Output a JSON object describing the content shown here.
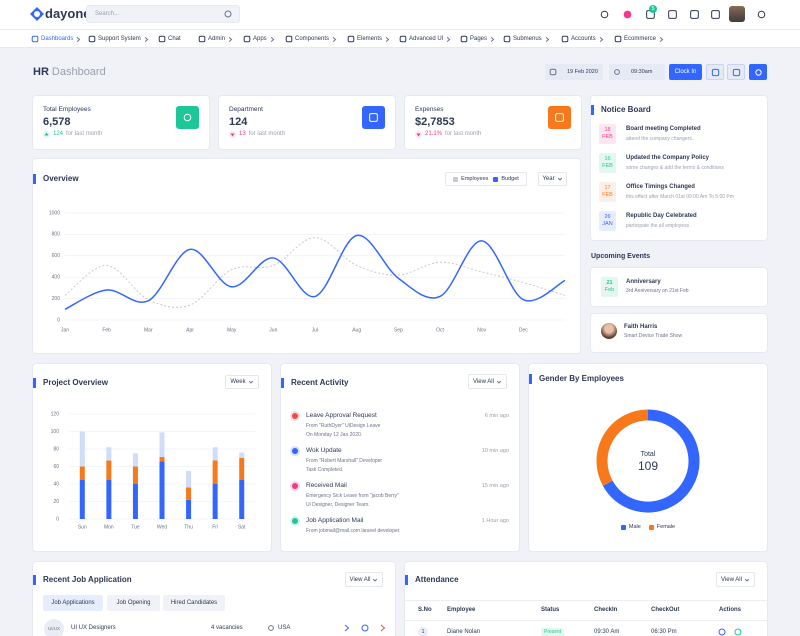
{
  "header": {
    "logo": "dayone",
    "search_placeholder": "Search...",
    "mail_badge": "5"
  },
  "nav": [
    "Dashboards",
    "Support System",
    "Chat",
    "Admin",
    "Apps",
    "Components",
    "Elements",
    "Advanced UI",
    "Pages",
    "Submenus",
    "Accounts",
    "Ecommerce"
  ],
  "page_title": {
    "prefix": "HR",
    "title": "Dashboard"
  },
  "toolbar": {
    "date": "19 Feb 2020",
    "time": "09:30am",
    "button": "Clock In"
  },
  "stats": [
    {
      "label": "Total Employees",
      "value": "6,578",
      "change": "124",
      "note": "for last month"
    },
    {
      "label": "Department",
      "value": "124",
      "change": "13",
      "note": "for last month"
    },
    {
      "label": "Expenses",
      "value": "$2,7853",
      "change": "21.1%",
      "note": "for last month"
    }
  ],
  "notice_board": {
    "title": "Notice Board",
    "items": [
      {
        "day": "18",
        "month": "FEB",
        "title": "Board meeting Completed",
        "text": "attend the company changers.."
      },
      {
        "day": "16",
        "month": "FEB",
        "title": "Updated the Company Policy",
        "text": "some changes & add the terms & conditions"
      },
      {
        "day": "17",
        "month": "FEB",
        "title": "Office Timings Changed",
        "text": "this effect after March 01st 09:00 Am To 5:00 Pm"
      },
      {
        "day": "26",
        "month": "JAN",
        "title": "Republic Day Celebrated",
        "text": "participate the all employess"
      }
    ]
  },
  "upcoming_events": {
    "title": "Upcoming Events",
    "event": {
      "day": "21",
      "month": "Feb",
      "title": "Anniversary",
      "text": "3rd Anniversary on 21st Feb"
    },
    "person": {
      "name": "Faith Harris",
      "text": "Smart Device Trade Show"
    }
  },
  "chart_data": [
    {
      "type": "line",
      "title": "Overview",
      "control": "Year",
      "categories": [
        "Jan",
        "Feb",
        "Mar",
        "Apr",
        "May",
        "Jun",
        "Jul",
        "Aug",
        "Sep",
        "Oct",
        "Nov",
        "Dec",
        null
      ],
      "series": [
        {
          "name": "Employees",
          "color": "#c5cad6",
          "dashed": true,
          "values": [
            230,
            510,
            190,
            140,
            470,
            510,
            770,
            510,
            420,
            540,
            450,
            350,
            230
          ]
        },
        {
          "name": "Budget",
          "color": "#3366ff",
          "values": [
            100,
            280,
            180,
            660,
            310,
            580,
            220,
            790,
            390,
            220,
            740,
            190,
            370
          ]
        }
      ],
      "ylim": [
        0,
        1000
      ],
      "yticks": [
        0,
        200,
        400,
        600,
        800,
        1000
      ],
      "grid": true
    },
    {
      "type": "bar",
      "stacked": true,
      "title": "Project Overview",
      "control": "Week",
      "categories": [
        "Sun",
        "Mon",
        "Tue",
        "Wed",
        "Thu",
        "Fri",
        "Sat"
      ],
      "series": [
        {
          "color": "#3366ff",
          "values": [
            45,
            45,
            40,
            66,
            22,
            40,
            45
          ]
        },
        {
          "color": "#f7791c",
          "values": [
            15,
            22,
            20,
            5,
            14,
            27,
            25
          ]
        },
        {
          "color": "#cfdcfb",
          "values": [
            40,
            15,
            15,
            28,
            19,
            15,
            6
          ]
        }
      ],
      "ylim": [
        0,
        120
      ],
      "yticks": [
        0,
        20,
        40,
        60,
        80,
        100,
        120
      ],
      "grid": true
    },
    {
      "type": "pie",
      "donut": true,
      "title": "Gender By Employees",
      "center_label": "Total",
      "total": 109,
      "categories": [
        "Male",
        "Female"
      ],
      "values": [
        73,
        36
      ],
      "colors": [
        "#3366ff",
        "#f7791c"
      ]
    }
  ],
  "recent_activity": {
    "title": "Recent Activity",
    "button": "View All",
    "items": [
      {
        "title": "Leave Approval Request",
        "time": "6 min ago",
        "lines": [
          "From \"RuthDyer\" UiDesign Leave",
          "On Monday 12 Jan 2020."
        ]
      },
      {
        "title": "Wok Update",
        "time": "10 min ago",
        "lines": [
          "From \"Robert Marshall\" Developer",
          "Task Completed."
        ]
      },
      {
        "title": "Received Mail",
        "time": "15 min ago",
        "lines": [
          "Emergency Sick Leave from \"jacob Berry\"",
          "Ui Designer, Designer Team."
        ]
      },
      {
        "title": "Job Application Mail",
        "time": "1 Hour ago",
        "lines": [
          "From jobmail@mail.com laravel developer."
        ]
      }
    ]
  },
  "recent_jobs": {
    "title": "Recent Job Application",
    "button": "View All",
    "tabs": [
      "Job Applications",
      "Job Opening",
      "Hired Candidates"
    ],
    "rows": [
      {
        "badge": "UI/UX",
        "role": "UI UX Designers",
        "vacancies": "4 vacancies",
        "location": "USA"
      }
    ]
  },
  "attendance": {
    "title": "Attendance",
    "button": "View All",
    "columns": [
      "S.No",
      "Employee",
      "Status",
      "CheckIn",
      "CheckOut",
      "Actions"
    ],
    "rows": [
      [
        "1",
        "Diane Nolan",
        "Present",
        "09:30 Am",
        "06:30 Pm"
      ]
    ]
  }
}
